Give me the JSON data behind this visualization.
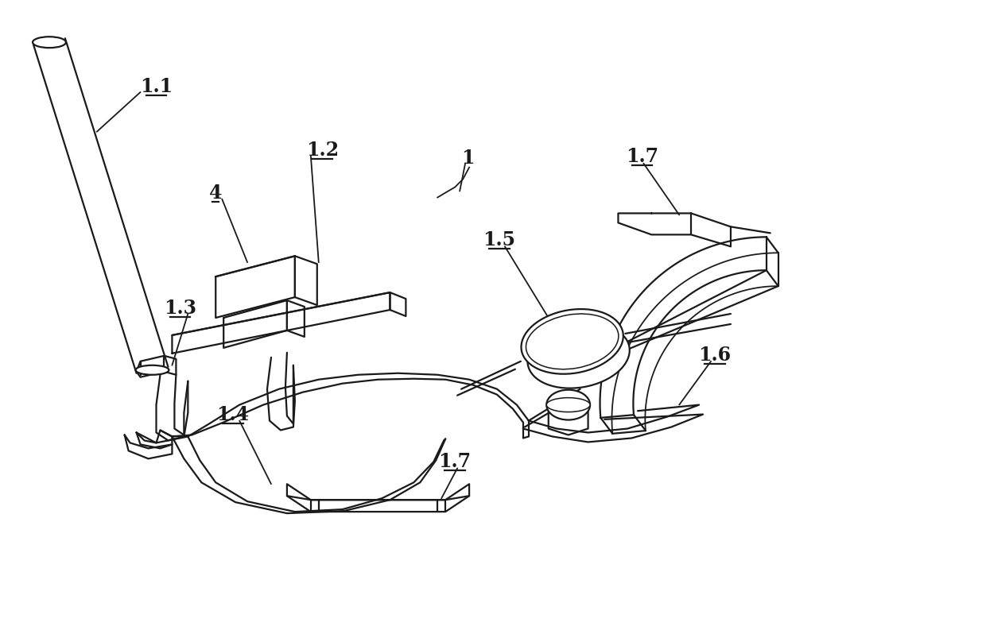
{
  "background_color": "#ffffff",
  "line_color": "#1a1a1a",
  "line_width": 1.6,
  "fig_width": 12.4,
  "fig_height": 7.93,
  "dpi": 100
}
